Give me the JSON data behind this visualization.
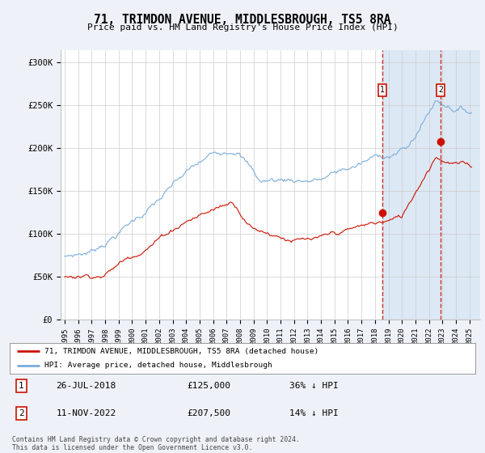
{
  "title": "71, TRIMDON AVENUE, MIDDLESBROUGH, TS5 8RA",
  "subtitle": "Price paid vs. HM Land Registry's House Price Index (HPI)",
  "bg_color": "#eef2f8",
  "plot_bg_color": "#ffffff",
  "ylabel_ticks": [
    "£0",
    "£50K",
    "£100K",
    "£150K",
    "£200K",
    "£250K",
    "£300K"
  ],
  "ytick_values": [
    0,
    50000,
    100000,
    150000,
    200000,
    250000,
    300000
  ],
  "ylim": [
    0,
    315000
  ],
  "xlim_start": 1994.7,
  "xlim_end": 2025.8,
  "marker1_x": 2018.55,
  "marker2_x": 2022.87,
  "marker1_label": "1",
  "marker2_label": "2",
  "sale1_date": "26-JUL-2018",
  "sale1_price": "£125,000",
  "sale1_hpi": "36% ↓ HPI",
  "sale2_date": "11-NOV-2022",
  "sale2_price": "£207,500",
  "sale2_hpi": "14% ↓ HPI",
  "legend_line1": "71, TRIMDON AVENUE, MIDDLESBROUGH, TS5 8RA (detached house)",
  "legend_line2": "HPI: Average price, detached house, Middlesbrough",
  "footer": "Contains HM Land Registry data © Crown copyright and database right 2024.\nThis data is licensed under the Open Government Licence v3.0.",
  "sale1_dot_x": 2018.55,
  "sale1_dot_y": 125000,
  "sale2_dot_x": 2022.87,
  "sale2_dot_y": 207500,
  "hpi_color": "#7aadda",
  "price_color": "#cc1100",
  "dot_color": "#cc1100",
  "shade_color": "#dde8f5",
  "marker_box_color": "#cc1100"
}
